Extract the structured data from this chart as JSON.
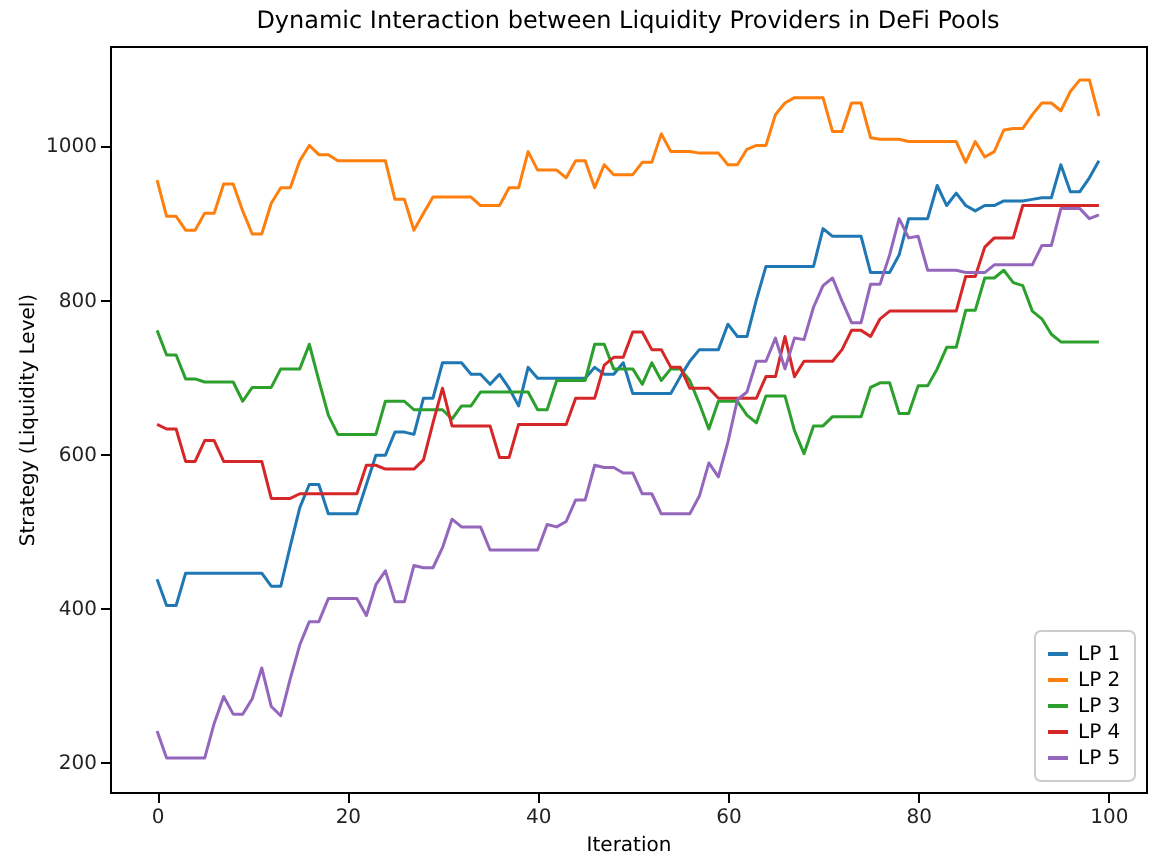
{
  "chart_data": {
    "type": "line",
    "title": "Dynamic Interaction between Liquidity Providers in DeFi Pools",
    "xlabel": "Iteration",
    "ylabel": "Strategy (Liquidity Level)",
    "x": [
      0,
      1,
      2,
      3,
      4,
      5,
      6,
      7,
      8,
      9,
      10,
      11,
      12,
      13,
      14,
      15,
      16,
      17,
      18,
      19,
      20,
      21,
      22,
      23,
      24,
      25,
      26,
      27,
      28,
      29,
      30,
      31,
      32,
      33,
      34,
      35,
      36,
      37,
      38,
      39,
      40,
      41,
      42,
      43,
      44,
      45,
      46,
      47,
      48,
      49,
      50,
      51,
      52,
      53,
      54,
      55,
      56,
      57,
      58,
      59,
      60,
      61,
      62,
      63,
      64,
      65,
      66,
      67,
      68,
      69,
      70,
      71,
      72,
      73,
      74,
      75,
      76,
      77,
      78,
      79,
      80,
      81,
      82,
      83,
      84,
      85,
      86,
      87,
      88,
      89,
      90,
      91,
      92,
      93,
      94,
      95,
      96,
      97,
      98,
      99
    ],
    "series": [
      {
        "name": "LP 1",
        "color": "#1f77b4",
        "values": [
          437,
          403,
          403,
          445,
          445,
          445,
          445,
          445,
          445,
          445,
          445,
          445,
          428,
          428,
          480,
          530,
          560,
          560,
          522,
          522,
          522,
          522,
          560,
          598,
          598,
          628,
          628,
          625,
          672,
          672,
          718,
          718,
          718,
          703,
          703,
          690,
          703,
          685,
          662,
          712,
          698,
          698,
          698,
          698,
          698,
          698,
          712,
          703,
          703,
          718,
          678,
          678,
          678,
          678,
          678,
          700,
          720,
          735,
          735,
          735,
          768,
          752,
          752,
          800,
          843,
          843,
          843,
          843,
          843,
          843,
          892,
          882,
          882,
          882,
          882,
          835,
          835,
          835,
          858,
          905,
          905,
          905,
          948,
          922,
          938,
          922,
          915,
          922,
          922,
          928,
          928,
          928,
          930,
          932,
          932,
          975,
          940,
          940,
          958,
          980
        ]
      },
      {
        "name": "LP 2",
        "color": "#ff7f0e",
        "values": [
          955,
          908,
          908,
          890,
          890,
          912,
          912,
          950,
          950,
          915,
          885,
          885,
          925,
          945,
          945,
          980,
          1000,
          988,
          988,
          980,
          980,
          980,
          980,
          980,
          980,
          930,
          930,
          890,
          912,
          933,
          933,
          933,
          933,
          933,
          922,
          922,
          922,
          945,
          945,
          992,
          968,
          968,
          968,
          958,
          980,
          980,
          945,
          975,
          962,
          962,
          962,
          978,
          978,
          1015,
          992,
          992,
          992,
          990,
          990,
          990,
          975,
          975,
          995,
          1000,
          1000,
          1040,
          1055,
          1062,
          1062,
          1062,
          1062,
          1018,
          1018,
          1055,
          1055,
          1010,
          1008,
          1008,
          1008,
          1005,
          1005,
          1005,
          1005,
          1005,
          1005,
          978,
          1005,
          985,
          992,
          1020,
          1022,
          1022,
          1040,
          1055,
          1055,
          1045,
          1070,
          1085,
          1085,
          1038
        ]
      },
      {
        "name": "LP 3",
        "color": "#2ca02c",
        "values": [
          760,
          728,
          728,
          697,
          697,
          693,
          693,
          693,
          693,
          668,
          686,
          686,
          686,
          710,
          710,
          710,
          742,
          695,
          650,
          625,
          625,
          625,
          625,
          625,
          668,
          668,
          668,
          657,
          657,
          657,
          657,
          645,
          662,
          662,
          680,
          680,
          680,
          680,
          680,
          680,
          657,
          657,
          695,
          695,
          695,
          695,
          742,
          742,
          710,
          710,
          710,
          690,
          718,
          695,
          710,
          710,
          695,
          665,
          632,
          668,
          668,
          668,
          650,
          640,
          675,
          675,
          675,
          630,
          600,
          636,
          636,
          648,
          648,
          648,
          648,
          686,
          692,
          692,
          652,
          652,
          688,
          688,
          710,
          738,
          738,
          786,
          786,
          828,
          828,
          838,
          822,
          818,
          785,
          775,
          755,
          745,
          745,
          745,
          745,
          745
        ]
      },
      {
        "name": "LP 4",
        "color": "#d62728",
        "values": [
          638,
          632,
          632,
          590,
          590,
          617,
          617,
          590,
          590,
          590,
          590,
          590,
          542,
          542,
          542,
          548,
          548,
          548,
          548,
          548,
          548,
          548,
          585,
          585,
          580,
          580,
          580,
          580,
          592,
          640,
          685,
          636,
          636,
          636,
          636,
          636,
          595,
          595,
          638,
          638,
          638,
          638,
          638,
          638,
          672,
          672,
          672,
          715,
          725,
          725,
          758,
          758,
          735,
          735,
          712,
          712,
          685,
          685,
          685,
          672,
          672,
          672,
          672,
          672,
          700,
          700,
          752,
          700,
          720,
          720,
          720,
          720,
          735,
          760,
          760,
          752,
          775,
          785,
          785,
          785,
          785,
          785,
          785,
          785,
          785,
          830,
          830,
          868,
          880,
          880,
          880,
          922,
          922,
          922,
          922,
          922,
          922,
          922,
          922,
          922
        ]
      },
      {
        "name": "LP 5",
        "color": "#9467bd",
        "values": [
          240,
          205,
          205,
          205,
          205,
          205,
          250,
          285,
          262,
          262,
          282,
          322,
          272,
          260,
          308,
          352,
          382,
          382,
          412,
          412,
          412,
          412,
          390,
          430,
          448,
          408,
          408,
          455,
          452,
          452,
          478,
          515,
          505,
          505,
          505,
          475,
          475,
          475,
          475,
          475,
          475,
          508,
          505,
          512,
          540,
          540,
          585,
          582,
          582,
          575,
          575,
          548,
          548,
          522,
          522,
          522,
          522,
          545,
          588,
          570,
          615,
          670,
          680,
          720,
          720,
          750,
          710,
          750,
          748,
          790,
          818,
          828,
          798,
          770,
          770,
          820,
          820,
          858,
          905,
          880,
          882,
          838,
          838,
          838,
          838,
          835,
          835,
          835,
          845,
          845,
          845,
          845,
          845,
          870,
          870,
          918,
          918,
          918,
          905,
          910
        ]
      }
    ],
    "xlim": [
      -4.95,
      103.95
    ],
    "ylim": [
      161,
      1129
    ],
    "xticks": [
      0,
      20,
      40,
      60,
      80,
      100
    ],
    "yticks": [
      200,
      400,
      600,
      800,
      1000
    ],
    "legend": "bottom right",
    "grid": false
  }
}
